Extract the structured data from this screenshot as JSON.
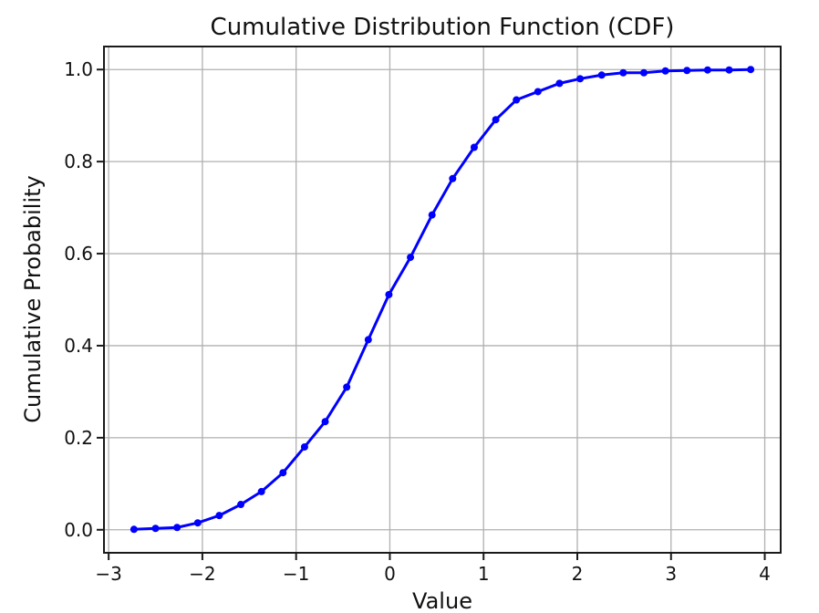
{
  "figure": {
    "background": "#ffffff"
  },
  "chart_data": {
    "type": "line",
    "title": "Cumulative Distribution Function (CDF)",
    "xlabel": "Value",
    "ylabel": "Cumulative Probability",
    "grid": true,
    "legend_position": "none",
    "xlim": [
      -3.05,
      4.17
    ],
    "ylim": [
      -0.05,
      1.05
    ],
    "xticks": [
      -3,
      -2,
      -1,
      0,
      1,
      2,
      3,
      4
    ],
    "x_tick_labels": [
      "−3",
      "−2",
      "−1",
      "0",
      "1",
      "2",
      "3",
      "4"
    ],
    "yticks": [
      0.0,
      0.2,
      0.4,
      0.6,
      0.8,
      1.0
    ],
    "y_tick_labels": [
      "0.0",
      "0.2",
      "0.4",
      "0.6",
      "0.8",
      "1.0"
    ],
    "colors": {
      "line": "#0000ff",
      "marker": "#0000ff",
      "grid": "#b0b0b0",
      "axis": "#1a1a1a",
      "background": "#ffffff"
    },
    "marker_style": "circle",
    "series": [
      {
        "name": "CDF",
        "x": [
          -2.73,
          -2.5,
          -2.27,
          -2.05,
          -1.82,
          -1.59,
          -1.37,
          -1.14,
          -0.91,
          -0.69,
          -0.46,
          -0.23,
          -0.01,
          0.22,
          0.45,
          0.67,
          0.9,
          1.13,
          1.35,
          1.58,
          1.81,
          2.03,
          2.26,
          2.49,
          2.71,
          2.94,
          3.17,
          3.39,
          3.62,
          3.85
        ],
        "y": [
          0.001,
          0.003,
          0.005,
          0.015,
          0.031,
          0.055,
          0.083,
          0.124,
          0.18,
          0.235,
          0.31,
          0.413,
          0.511,
          0.592,
          0.684,
          0.763,
          0.831,
          0.891,
          0.934,
          0.952,
          0.97,
          0.98,
          0.988,
          0.993,
          0.993,
          0.997,
          0.998,
          0.999,
          0.999,
          1.0
        ]
      }
    ]
  }
}
